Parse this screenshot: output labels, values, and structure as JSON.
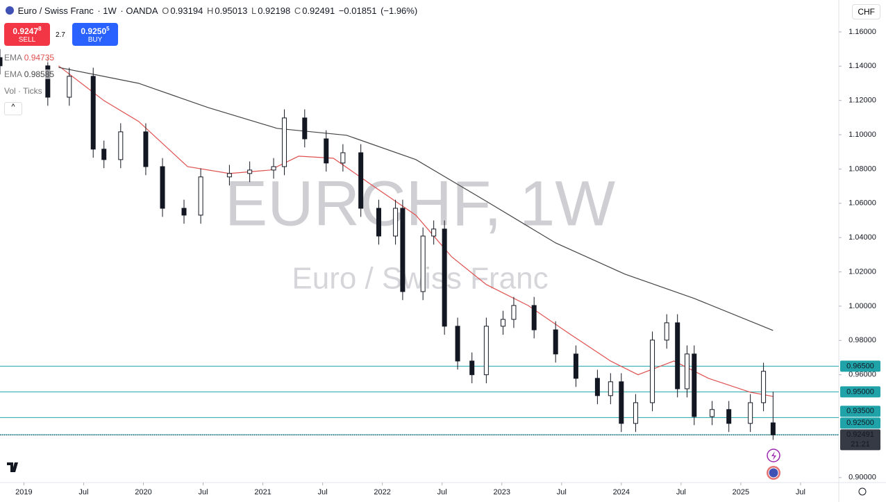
{
  "header": {
    "symbol": "Euro / Swiss Franc",
    "interval": "1W",
    "source": "OANDA",
    "change": "−0.01851",
    "change_pct": "(−1.96%)"
  },
  "trade": {
    "sell_price": "0.9247",
    "sell_pip": "8",
    "sell_label": "SELL",
    "spread": "2.7",
    "buy_price": "0.9250",
    "buy_pip": "5",
    "buy_label": "BUY"
  },
  "indicator_labels": {
    "volume": "Vol · Ticks"
  },
  "currency": "CHF",
  "countdown": "21:21",
  "watermark": {
    "title": "EURCHF, 1W",
    "subtitle": "Euro / Swiss Franc"
  },
  "chart_data": {
    "type": "candlestick",
    "x": [
      2018.8,
      2019.2,
      2019.38,
      2019.58,
      2019.67,
      2019.81,
      2020.02,
      2020.16,
      2020.34,
      2020.48,
      2020.72,
      2020.89,
      2021.09,
      2021.18,
      2021.35,
      2021.53,
      2021.67,
      2021.82,
      2021.97,
      2022.11,
      2022.17,
      2022.34,
      2022.43,
      2022.52,
      2022.63,
      2022.75,
      2022.87,
      2023.01,
      2023.1,
      2023.27,
      2023.45,
      2023.62,
      2023.8,
      2023.91,
      2024.0,
      2024.12,
      2024.26,
      2024.38,
      2024.47,
      2024.55,
      2024.61,
      2024.76,
      2024.9,
      2025.08,
      2025.19,
      2025.27
    ],
    "open": [
      1.145,
      1.1402,
      1.1219,
      1.1341,
      1.0916,
      1.0855,
      1.1017,
      1.0814,
      1.0571,
      1.0531,
      1.0754,
      1.0774,
      1.0794,
      1.0814,
      1.1098,
      1.0976,
      1.0835,
      1.0895,
      1.0571,
      1.0409,
      1.0571,
      1.0085,
      1.0409,
      1.045,
      0.9883,
      0.968,
      0.96,
      0.9883,
      0.9923,
      1.0004,
      0.9862,
      0.9721,
      0.9579,
      0.9478,
      0.9559,
      0.9316,
      0.9437,
      0.9802,
      0.9903,
      0.9518,
      0.9721,
      0.9356,
      0.9397,
      0.9316,
      0.9437,
      0.93194
    ],
    "high": [
      1.15,
      1.1452,
      1.1391,
      1.1391,
      1.0966,
      1.1067,
      1.1067,
      1.0864,
      1.0621,
      1.0804,
      1.0824,
      1.0844,
      1.0864,
      1.1148,
      1.1148,
      1.1026,
      1.0945,
      1.0945,
      1.0621,
      1.0621,
      1.0621,
      1.0459,
      1.05,
      1.05,
      0.9933,
      0.973,
      0.9933,
      0.9973,
      1.0054,
      1.0054,
      0.9912,
      0.9771,
      0.9629,
      0.9609,
      0.9609,
      0.9487,
      0.9852,
      0.9953,
      0.9953,
      0.9771,
      0.9771,
      0.9447,
      0.9447,
      0.9487,
      0.967,
      0.95013
    ],
    "low": [
      1.1352,
      1.1169,
      1.1169,
      1.0866,
      1.0805,
      1.0805,
      1.0764,
      1.0521,
      1.0481,
      1.0481,
      1.0704,
      1.0724,
      1.0744,
      1.0764,
      1.0926,
      1.0785,
      1.0785,
      1.0521,
      1.0359,
      1.0359,
      1.0035,
      1.0035,
      1.0359,
      0.9833,
      0.963,
      0.955,
      0.955,
      0.9833,
      0.9873,
      0.9812,
      0.9671,
      0.9529,
      0.9428,
      0.9428,
      0.9266,
      0.9266,
      0.9387,
      0.9752,
      0.9468,
      0.9468,
      0.9306,
      0.9306,
      0.9266,
      0.9266,
      0.9387,
      0.92198
    ],
    "close": [
      1.1402,
      1.1219,
      1.1341,
      1.0916,
      1.0855,
      1.1017,
      1.0814,
      1.0571,
      1.0531,
      1.0754,
      1.0774,
      1.0794,
      1.0814,
      1.1098,
      1.0976,
      1.0835,
      1.0895,
      1.0571,
      1.0409,
      1.0571,
      1.0085,
      1.0409,
      1.045,
      0.9883,
      0.968,
      0.96,
      0.9883,
      0.9923,
      1.0004,
      0.9862,
      0.9721,
      0.9579,
      0.9478,
      0.9559,
      0.9316,
      0.9437,
      0.9802,
      0.9903,
      0.9518,
      0.9721,
      0.9356,
      0.9397,
      0.9316,
      0.9437,
      0.962,
      0.92491
    ],
    "lines": [
      {
        "name": "EMA",
        "color": "#e05050",
        "x": [
          2019.29,
          2019.67,
          2019.96,
          2020.37,
          2020.72,
          2021.06,
          2021.3,
          2021.59,
          2021.94,
          2022.28,
          2022.58,
          2022.87,
          2023.22,
          2023.56,
          2023.91,
          2024.14,
          2024.44,
          2024.73,
          2025.08,
          2025.27
        ],
        "values": [
          1.1402,
          1.1199,
          1.1078,
          1.0814,
          1.0774,
          1.0794,
          1.0875,
          1.0863,
          1.0693,
          1.0531,
          1.0288,
          1.0126,
          1.0004,
          0.9842,
          0.968,
          0.96,
          0.968,
          0.9579,
          0.9498,
          0.94735
        ]
      },
      {
        "name": "EMA",
        "color": "#444444",
        "x": [
          2019.29,
          2019.96,
          2020.54,
          2021.12,
          2021.7,
          2022.28,
          2022.87,
          2023.45,
          2024.03,
          2024.61,
          2025.27
        ],
        "values": [
          1.1393,
          1.13,
          1.1159,
          1.1037,
          1.0997,
          1.0855,
          1.0612,
          1.0369,
          1.0187,
          1.0045,
          0.98585
        ]
      }
    ],
    "levels": [
      {
        "value": 0.965,
        "label": "0.96500"
      },
      {
        "value": 0.95,
        "label": "0.95000"
      },
      {
        "value": 0.935,
        "label": "0.93500"
      },
      {
        "value": 0.925,
        "label": "0.92500"
      }
    ],
    "level_color": "#1fa3a8",
    "xlim": [
      2018.8,
      2025.82
    ],
    "ylim": [
      0.8971,
      1.1786
    ],
    "yticks": [
      {
        "value": 1.16,
        "label": "1.16000"
      },
      {
        "value": 1.14,
        "label": "1.14000"
      },
      {
        "value": 1.12,
        "label": "1.12000"
      },
      {
        "value": 1.1,
        "label": "1.10000"
      },
      {
        "value": 1.08,
        "label": "1.08000"
      },
      {
        "value": 1.06,
        "label": "1.06000"
      },
      {
        "value": 1.04,
        "label": "1.04000"
      },
      {
        "value": 1.02,
        "label": "1.02000"
      },
      {
        "value": 1.0,
        "label": "1.00000"
      },
      {
        "value": 0.98,
        "label": "0.98000"
      },
      {
        "value": 0.96,
        "label": "0.96000"
      },
      {
        "value": 0.9,
        "label": "0.90000"
      }
    ],
    "xticks": [
      {
        "value": 2019,
        "label": "2019"
      },
      {
        "value": 2019.5,
        "label": "Jul"
      },
      {
        "value": 2020,
        "label": "2020"
      },
      {
        "value": 2020.5,
        "label": "Jul"
      },
      {
        "value": 2021,
        "label": "2021"
      },
      {
        "value": 2021.5,
        "label": "Jul"
      },
      {
        "value": 2022,
        "label": "2022"
      },
      {
        "value": 2022.5,
        "label": "Jul"
      },
      {
        "value": 2023,
        "label": "2023"
      },
      {
        "value": 2023.5,
        "label": "Jul"
      },
      {
        "value": 2024,
        "label": "2024"
      },
      {
        "value": 2024.5,
        "label": "Jul"
      },
      {
        "value": 2025,
        "label": "2025"
      },
      {
        "value": 2025.5,
        "label": "Jul"
      }
    ]
  }
}
